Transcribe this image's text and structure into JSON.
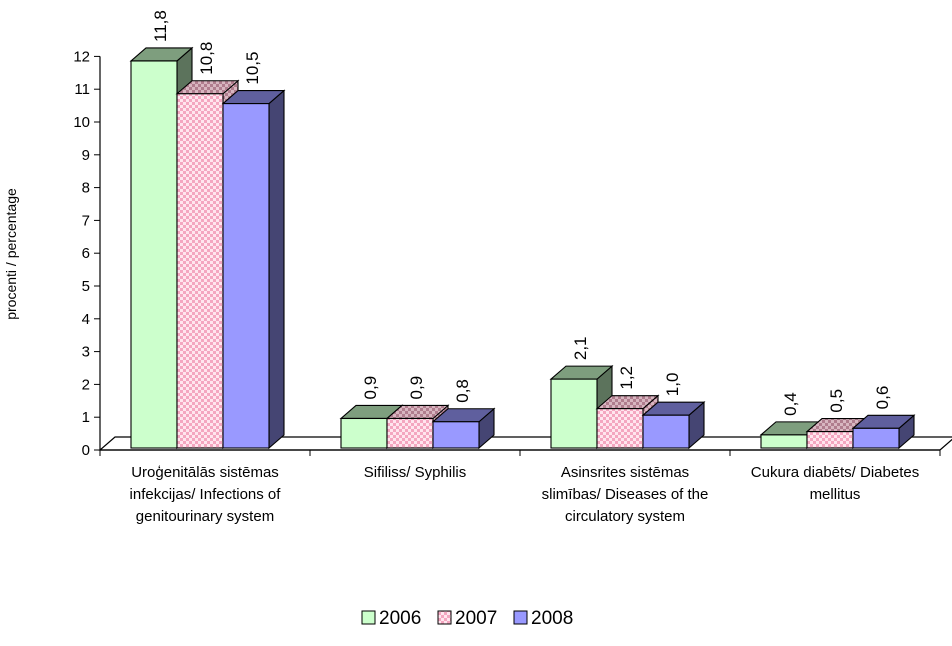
{
  "chart_data": {
    "type": "bar",
    "ylabel": "procenti / percentage",
    "ylim": [
      0,
      12
    ],
    "yticks": [
      "0",
      "1",
      "2",
      "3",
      "4",
      "5",
      "6",
      "7",
      "8",
      "9",
      "10",
      "11",
      "12"
    ],
    "categories": [
      [
        "Uroģenitālās sistēmas",
        "infekcijas/ Infections of",
        "genitourinary system"
      ],
      [
        "Sifiliss/ Syphilis"
      ],
      [
        "Asinsrites sistēmas",
        "slimības/ Diseases of the",
        "circulatory system"
      ],
      [
        "Cukura diabēts/ Diabetes",
        "mellitus"
      ]
    ],
    "series": [
      {
        "name": "2006",
        "values": [
          11.8,
          0.9,
          2.1,
          0.4
        ],
        "labels": [
          "11,8",
          "0,9",
          "2,1",
          "0,4"
        ],
        "color": "#ccffcc",
        "pattern": "solid"
      },
      {
        "name": "2007",
        "values": [
          10.8,
          0.9,
          1.2,
          0.5
        ],
        "labels": [
          "10,8",
          "0,9",
          "1,2",
          "0,5"
        ],
        "color": "#ffccdd",
        "pattern": "checker"
      },
      {
        "name": "2008",
        "values": [
          10.5,
          0.8,
          1.0,
          0.6
        ],
        "labels": [
          "10,5",
          "0,8",
          "1,0",
          "0,6"
        ],
        "color": "#9999ff",
        "pattern": "solid"
      }
    ],
    "legend_position": "bottom",
    "grid": false,
    "style": "3d-bar"
  }
}
